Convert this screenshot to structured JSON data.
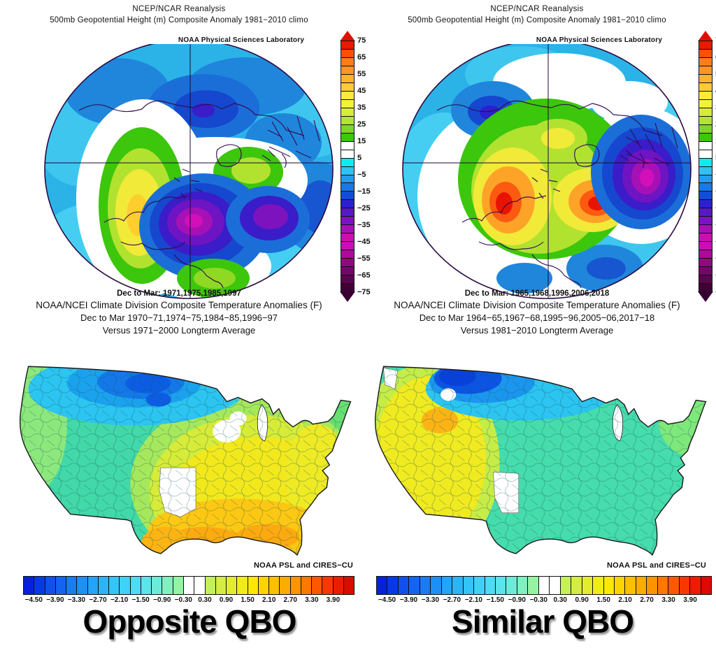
{
  "panels": [
    {
      "id": "opposite-qbo",
      "reanalysis_title": "NCEP/NCAR Reanalysis",
      "reanalysis_subtitle": "500mb Geopotential Height (m) Composite Anomaly 1981−2010 climo",
      "psl_watermark": "NOAA Physical Sciences Laboratory",
      "composite_years": "Dec to Mar: 1971,1975,1985,1997",
      "ncei_title": "NOAA/NCEI Climate Division Composite Temperature Anomalies (F)",
      "ncei_years": "Dec to Mar  1970−71,1974−75,1984−85,1996−97",
      "ncei_baseline": "Versus 1971−2000 Longterm Average",
      "credit": "NOAA PSL and CIRES−CU",
      "qbo_label": "Opposite QBO"
    },
    {
      "id": "similar-qbo",
      "reanalysis_title": "NCEP/NCAR Reanalysis",
      "reanalysis_subtitle": "500mb Geopotential Height (m) Composite Anomaly 1981−2010 climo",
      "psl_watermark": "NOAA Physical Sciences Laboratory",
      "composite_years": "Dec to Mar: 1965,1968,1996,2006,2018",
      "ncei_title": "NOAA/NCEI Climate Division Composite Temperature Anomalies (F)",
      "ncei_years": "Dec to Mar  1964−65,1967−68,1995−96,2005−06,2017−18",
      "ncei_baseline": "Versus 1981−2010 Longterm Average",
      "credit": "NOAA PSL and CIRES−CU",
      "qbo_label": "Similar QBO"
    }
  ],
  "height_colorbar": {
    "unit": "m",
    "tick_labels": [
      "75",
      "65",
      "55",
      "45",
      "35",
      "25",
      "15",
      "5",
      "−5",
      "−15",
      "−25",
      "−35",
      "−45",
      "−55",
      "−65",
      "−75"
    ],
    "segment_colors": [
      "#e81a00",
      "#fc4e0c",
      "#fd7c1c",
      "#fd9428",
      "#fdb42c",
      "#fdcc34",
      "#fdea3c",
      "#f2f23a",
      "#d6ec38",
      "#b4e334",
      "#80d42a",
      "#3cc60c",
      "#ffffff",
      "#ffffff",
      "#10ecec",
      "#30c2f2",
      "#219eee",
      "#1b78e6",
      "#144cda",
      "#2c20ce",
      "#5519c6",
      "#7d13be",
      "#a611b6",
      "#c90fb2",
      "#cb0db6",
      "#ad0a98",
      "#920880",
      "#760666",
      "#59044e",
      "#3c0236"
    ],
    "arrow_top_color": "#e01000",
    "arrow_bottom_color": "#360030"
  },
  "temp_colorbar": {
    "unit": "F",
    "tick_labels": [
      "−4.50",
      "−3.90",
      "−3.30",
      "−2.70",
      "−2.10",
      "−1.50",
      "−0.90",
      "−0.30",
      "0.30",
      "0.90",
      "1.50",
      "2.10",
      "2.70",
      "3.30",
      "3.90"
    ],
    "segment_colors": [
      "#0820dc",
      "#0838e4",
      "#1050ec",
      "#1464f0",
      "#187cf4",
      "#1c90f4",
      "#24a4f8",
      "#2cb4f8",
      "#34c4f8",
      "#40d0f8",
      "#4cdcf4",
      "#5ce4ec",
      "#6cecd8",
      "#80f0c0",
      "#94f4a4",
      "#ffffff",
      "#ffffff",
      "#c4f058",
      "#d4ec44",
      "#e4ec30",
      "#f0ec1c",
      "#fce800",
      "#fcd400",
      "#fcc000",
      "#fcac00",
      "#fc9400",
      "#fc7800",
      "#fc5800",
      "#f83800",
      "#ec1c00",
      "#d80c00"
    ]
  },
  "colors": {
    "polar_background": "#2bb3e8",
    "coastline": "#330a52",
    "text": "#111111"
  }
}
